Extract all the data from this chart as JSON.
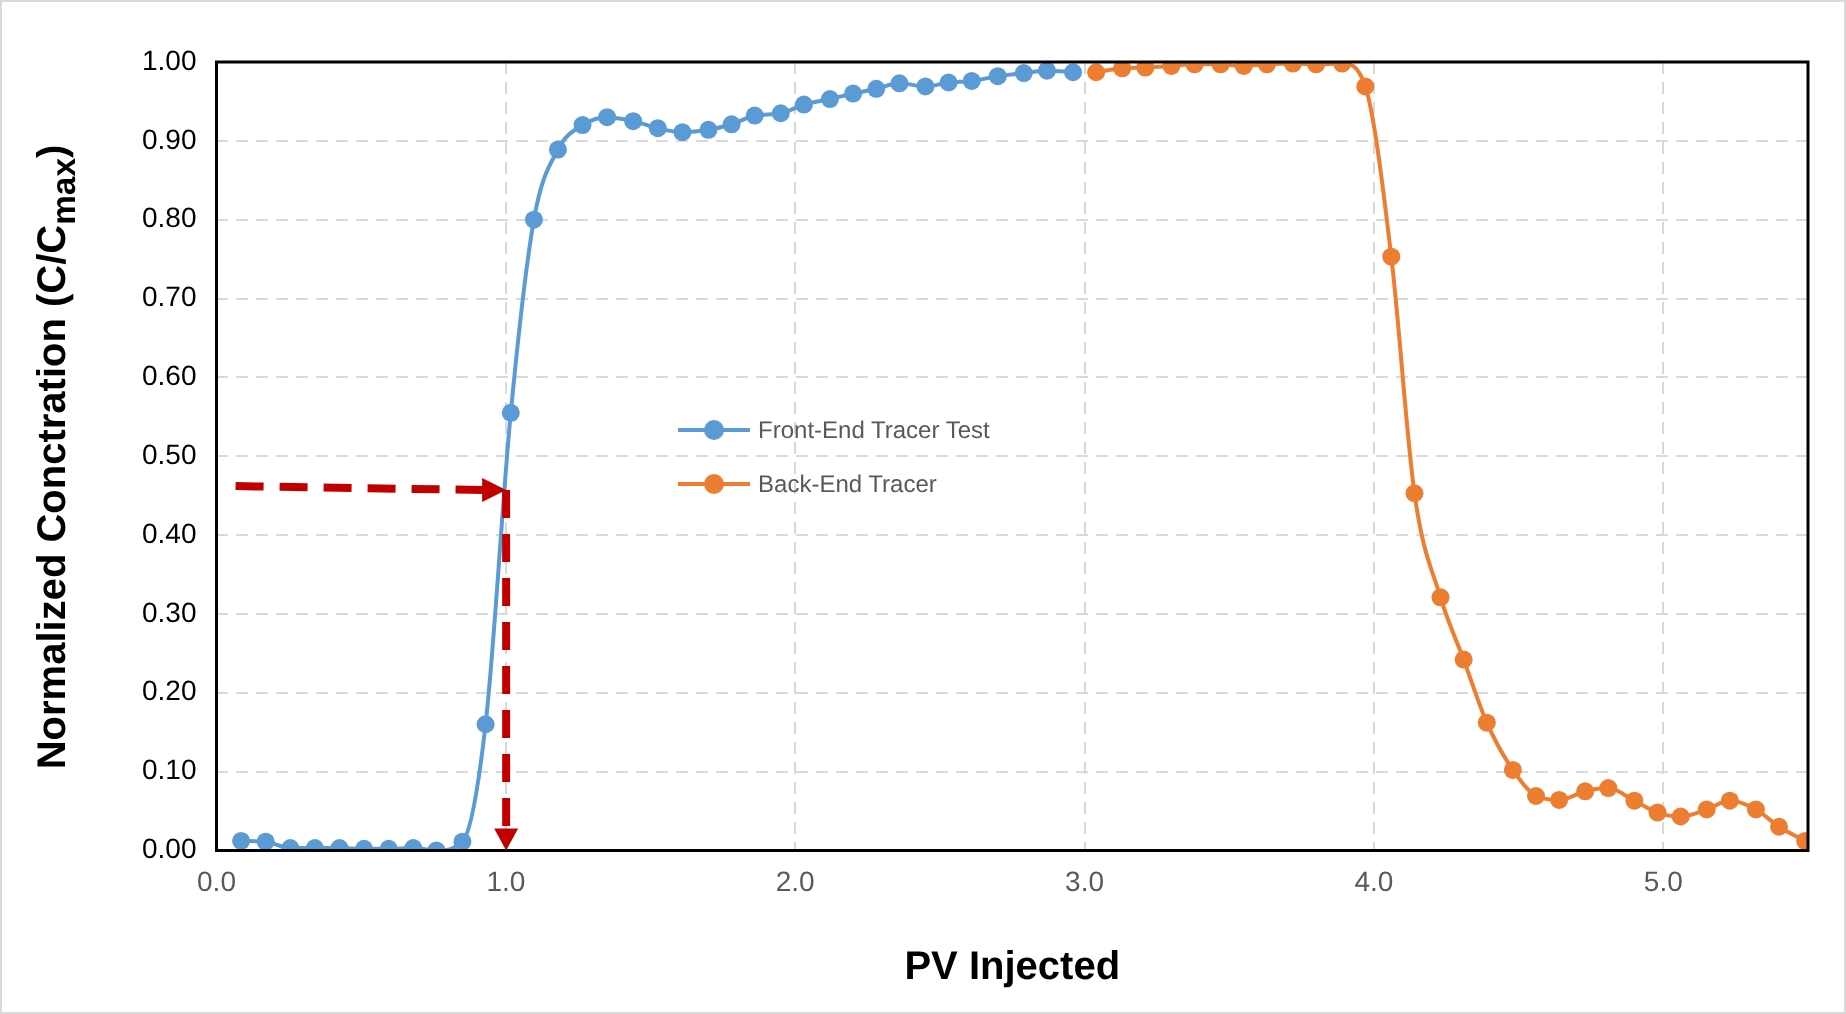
{
  "chart_data": {
    "type": "line",
    "xlabel": "PV Injected",
    "ylabel": "Normalized Conctration (C/C$_{max}$)",
    "xlim": [
      0,
      5.5
    ],
    "xticks": [
      {
        "value": 0,
        "label": "0.0"
      },
      {
        "value": 1,
        "label": "1.0"
      },
      {
        "value": 2,
        "label": "2.0"
      },
      {
        "value": 3,
        "label": "3.0"
      },
      {
        "value": 4,
        "label": "4.0"
      },
      {
        "value": 5,
        "label": "5.0"
      }
    ],
    "ylim": [
      0,
      1
    ],
    "yticks": [
      {
        "value": 0,
        "label": "0.00"
      },
      {
        "value": 0.1,
        "label": "0.10"
      },
      {
        "value": 0.2,
        "label": "0.20"
      },
      {
        "value": 0.3,
        "label": "0.30"
      },
      {
        "value": 0.4,
        "label": "0.40"
      },
      {
        "value": 0.5,
        "label": "0.50"
      },
      {
        "value": 0.6,
        "label": "0.60"
      },
      {
        "value": 0.7,
        "label": "0.70"
      },
      {
        "value": 0.8,
        "label": "0.80"
      },
      {
        "value": 0.9,
        "label": "0.90"
      },
      {
        "value": 1,
        "label": "1.00"
      }
    ],
    "grid": true,
    "legend": "center",
    "marker": "circle",
    "line_style": "solid",
    "series": [
      {
        "name": "Front-End Tracer Test",
        "color": "#5b9bd5",
        "x": [
          0.085,
          0.17,
          0.255,
          0.34,
          0.425,
          0.51,
          0.595,
          0.68,
          0.76,
          0.85,
          0.93,
          1.017,
          1.097,
          1.18,
          1.265,
          1.35,
          1.44,
          1.525,
          1.61,
          1.7,
          1.78,
          1.86,
          1.95,
          2.03,
          2.12,
          2.2,
          2.28,
          2.36,
          2.45,
          2.53,
          2.61,
          2.7,
          2.79,
          2.87,
          2.96
        ],
        "values": [
          0.012,
          0.011,
          0.003,
          0.003,
          0.003,
          0.002,
          0.002,
          0.003,
          0.0,
          0.011,
          0.16,
          0.555,
          0.8,
          0.889,
          0.92,
          0.93,
          0.925,
          0.916,
          0.911,
          0.914,
          0.921,
          0.932,
          0.935,
          0.946,
          0.953,
          0.96,
          0.966,
          0.973,
          0.969,
          0.974,
          0.976,
          0.982,
          0.986,
          0.989,
          0.987
        ]
      },
      {
        "name": "Back-End Tracer",
        "color": "#ed7d31",
        "x": [
          3.04,
          3.13,
          3.21,
          3.3,
          3.38,
          3.47,
          3.55,
          3.63,
          3.72,
          3.8,
          3.89,
          3.97,
          4.06,
          4.14,
          4.23,
          4.31,
          4.39,
          4.48,
          4.56,
          4.64,
          4.73,
          4.81,
          4.9,
          4.98,
          5.06,
          5.15,
          5.23,
          5.32,
          5.4,
          5.49
        ],
        "values": [
          0.987,
          0.992,
          0.993,
          0.995,
          0.997,
          0.997,
          0.995,
          0.997,
          0.998,
          0.997,
          0.998,
          0.969,
          0.753,
          0.453,
          0.321,
          0.242,
          0.162,
          0.102,
          0.069,
          0.064,
          0.075,
          0.079,
          0.063,
          0.048,
          0.043,
          0.052,
          0.063,
          0.052,
          0.03,
          0.012
        ]
      }
    ]
  }
}
